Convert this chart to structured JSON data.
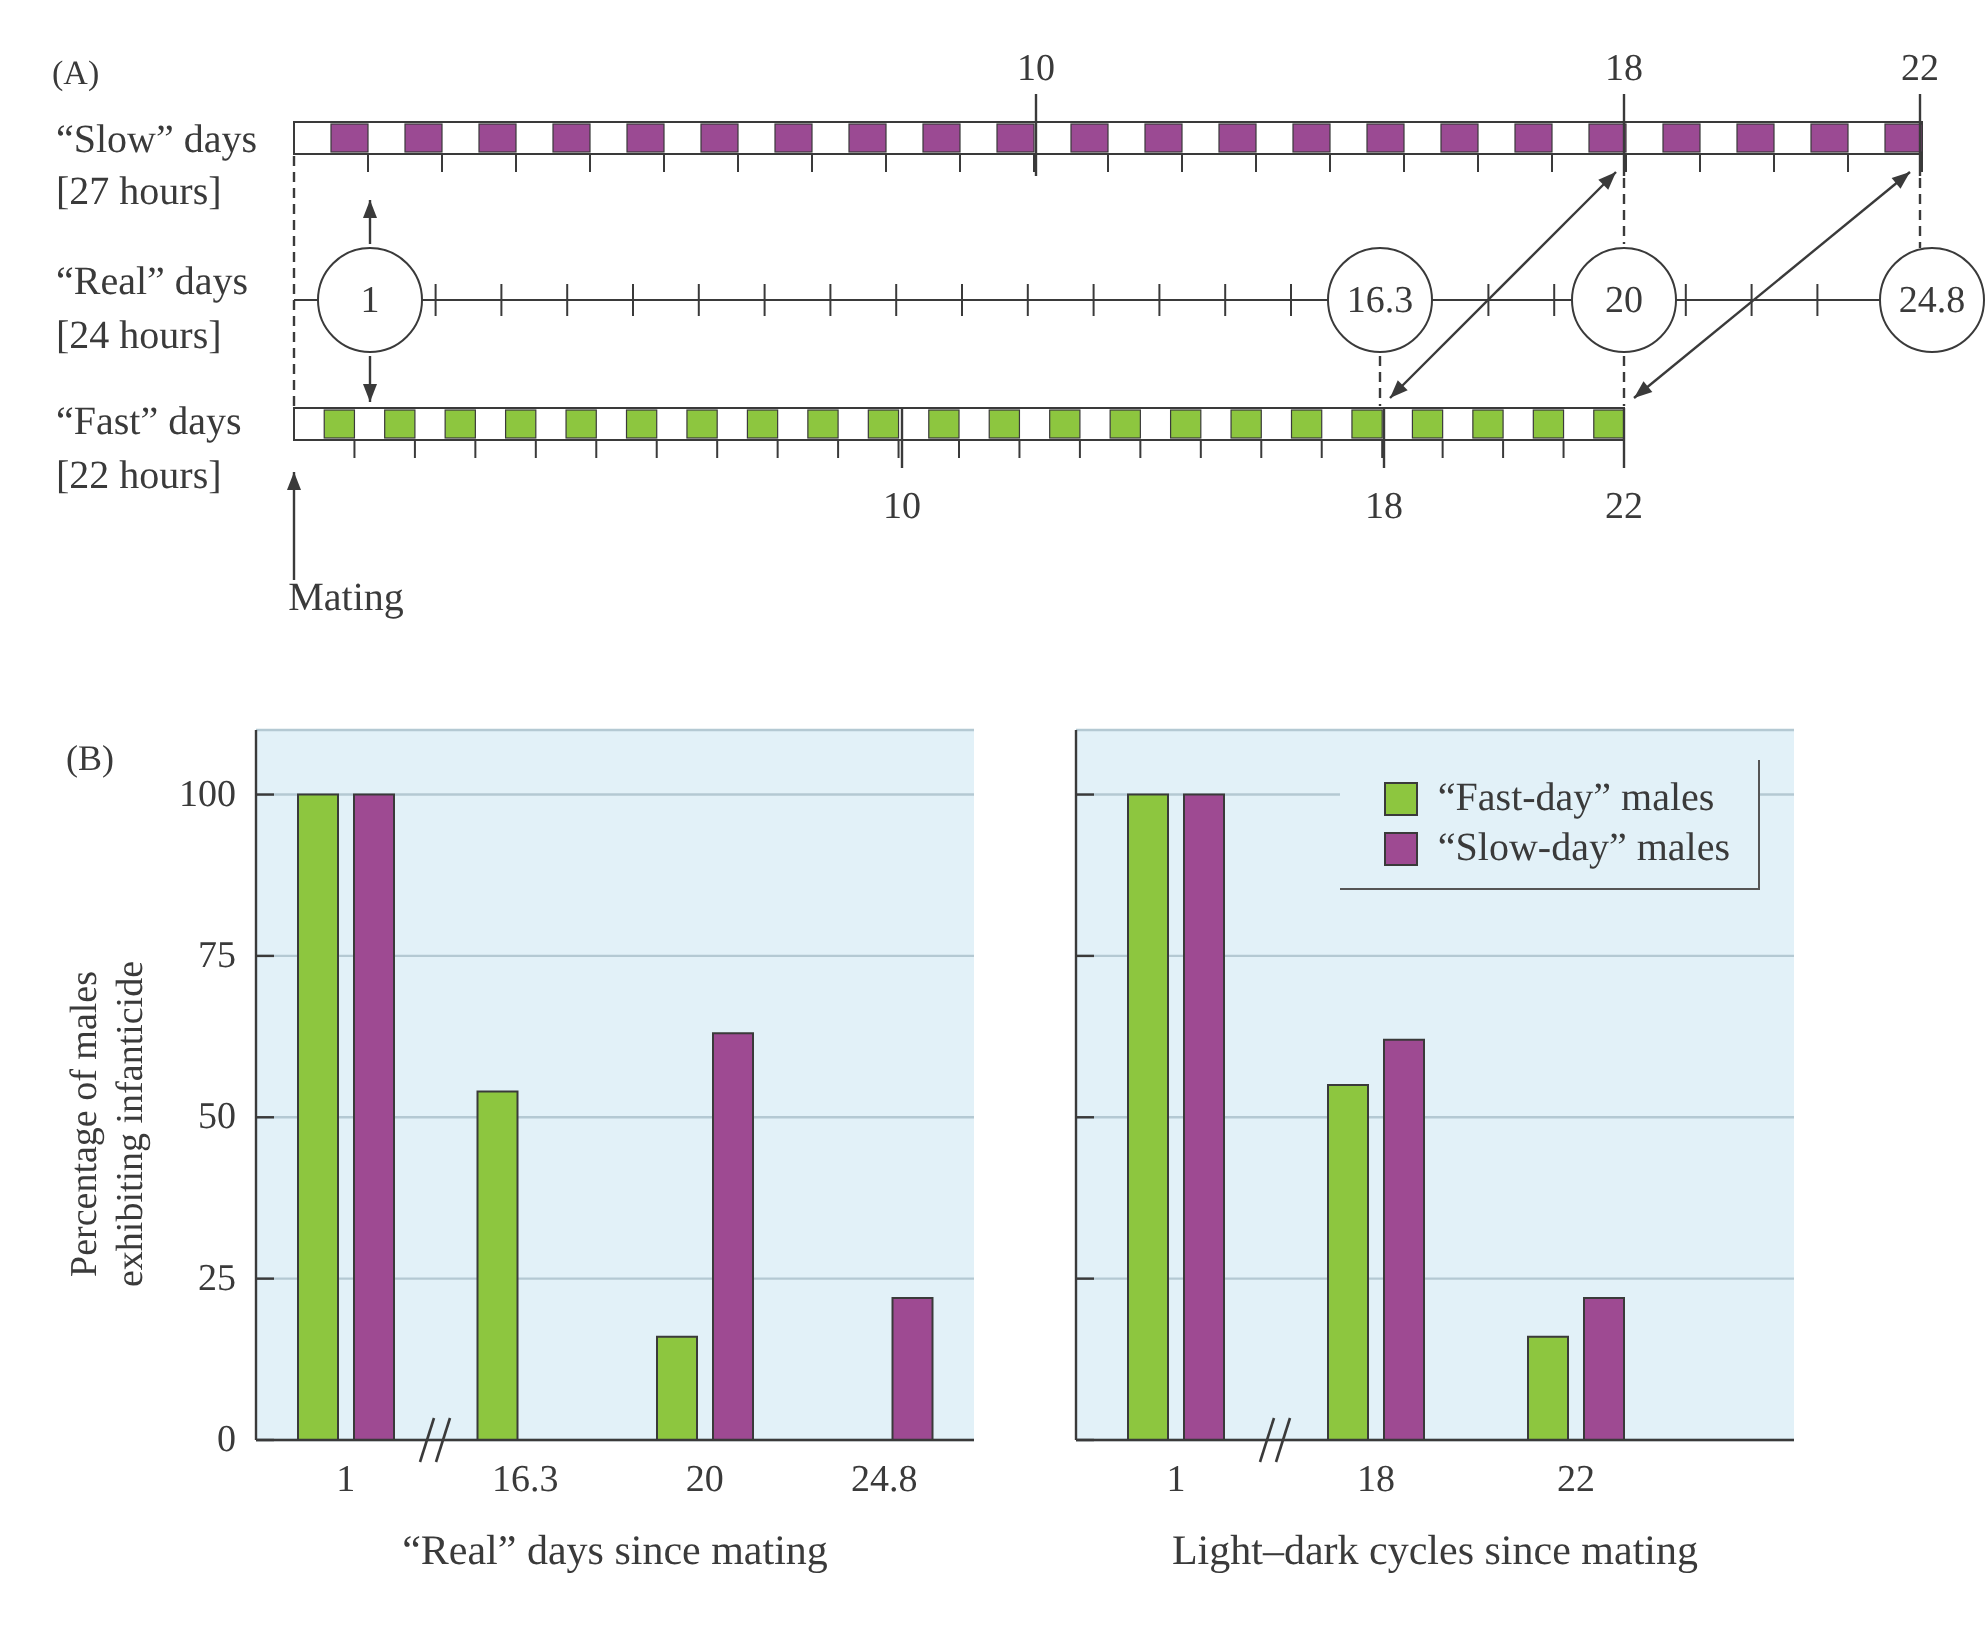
{
  "chart_data": [
    {
      "type": "other",
      "title": "(A)",
      "annotations": [
        "“Slow” days",
        "[27 hours]",
        "“Real” days",
        "[24 hours]",
        "“Fast” days",
        "[22 hours]",
        "Mating",
        "10",
        "18",
        "22",
        "1",
        "16.3",
        "20",
        "24.8",
        "10",
        "18",
        "22"
      ]
    },
    {
      "type": "bar",
      "title": "(B)",
      "categories": [
        "1",
        "16.3",
        "20",
        "24.8"
      ],
      "series": [
        {
          "color": "#8dc63f",
          "values": [
            100,
            54,
            16,
            null
          ]
        },
        {
          "color": "#9e4a92",
          "values": [
            100,
            null,
            63,
            22
          ]
        }
      ],
      "xlabel": "“Real” days since mating",
      "ylabel": "Percentage of males exhibiting infanticide",
      "ylim": [
        0,
        110
      ],
      "yticks": [
        0,
        25,
        50,
        75,
        100
      ],
      "grid": "y"
    },
    {
      "type": "bar",
      "categories": [
        "1",
        "18",
        "22"
      ],
      "series": [
        {
          "name": "“Fast-day” males",
          "color": "#8dc63f",
          "values": [
            100,
            55,
            16
          ]
        },
        {
          "name": "“Slow-day” males",
          "color": "#9e4a92",
          "values": [
            100,
            62,
            22
          ]
        }
      ],
      "xlabel": "Light–dark cycles since mating",
      "ylim": [
        0,
        110
      ],
      "yticks": [
        0,
        25,
        50,
        75,
        100
      ],
      "grid": "y",
      "legend": "top right",
      "tick_labels": "x"
    }
  ]
}
